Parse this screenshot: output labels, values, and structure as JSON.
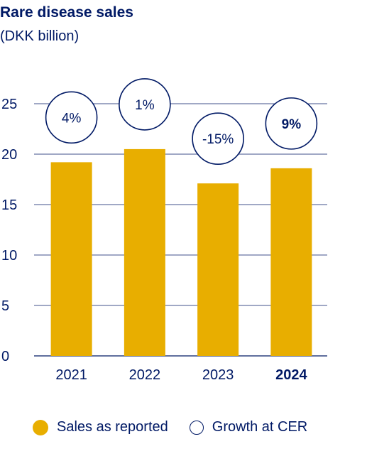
{
  "header": {
    "title": "Rare disease sales",
    "subtitle": "(DKK billion)"
  },
  "legend": {
    "items": [
      {
        "label": "Sales as reported",
        "marker": "filled-circle"
      },
      {
        "label": "Growth at CER",
        "marker": "outline-circle"
      }
    ]
  },
  "colors": {
    "bar": "#E8AE00",
    "text": "#001965",
    "gridline": "#001965"
  },
  "chart_data": {
    "type": "bar",
    "title": "Rare disease sales",
    "subtitle": "(DKK billion)",
    "categories": [
      "2021",
      "2022",
      "2023",
      "2024"
    ],
    "highlighted_category": "2024",
    "series": [
      {
        "name": "Sales as reported",
        "values": [
          19.2,
          20.5,
          17.1,
          18.6
        ]
      }
    ],
    "growth_labels": [
      "4%",
      "1%",
      "-15%",
      "9%"
    ],
    "growth_series_name": "Growth at CER",
    "ylim": [
      0,
      25
    ],
    "yticks": [
      0,
      5,
      10,
      15,
      20,
      25
    ],
    "grid": true,
    "legend_position": "bottom"
  }
}
